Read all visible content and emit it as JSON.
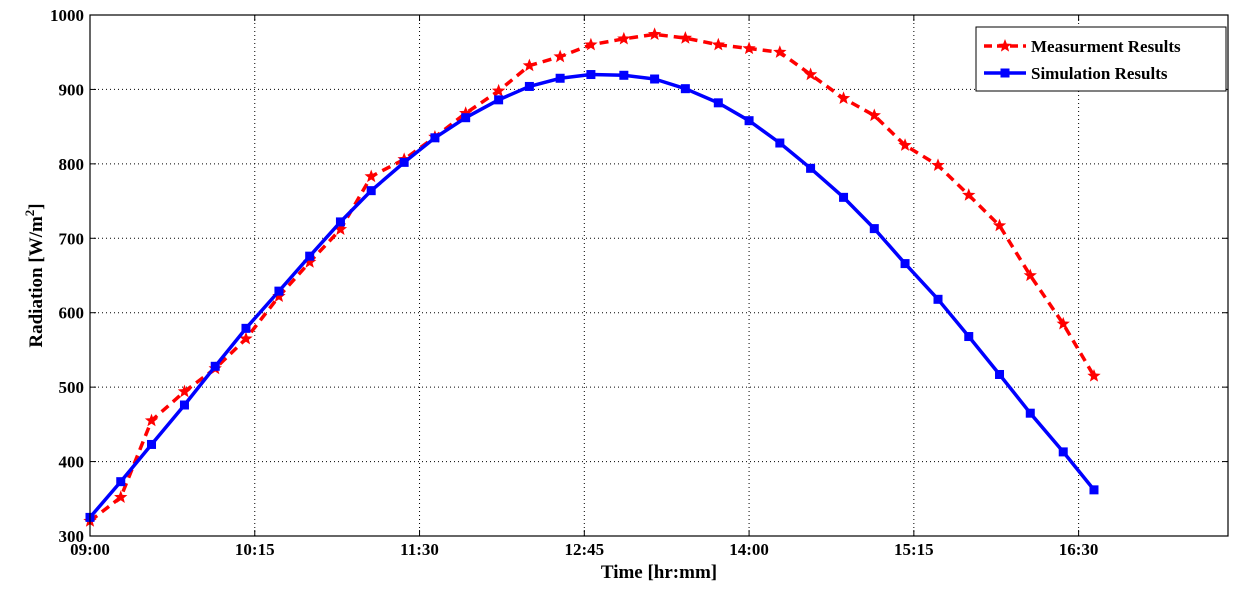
{
  "chart_data": {
    "type": "line",
    "title": "",
    "xlabel": "Time [hr:mm]",
    "ylabel": "Radiation [W/m²]",
    "ylabel_main": "Radiation [W/m",
    "ylabel_sup": "2",
    "ylabel_tail": "]",
    "xlim_minutes": [
      540,
      1058
    ],
    "ylim": [
      300,
      1000
    ],
    "grid": true,
    "legend_position": "top-right",
    "x_ticks": [
      {
        "value": 540,
        "label": "09:00"
      },
      {
        "value": 615,
        "label": "10:15"
      },
      {
        "value": 690,
        "label": "11:30"
      },
      {
        "value": 765,
        "label": "12:45"
      },
      {
        "value": 840,
        "label": "14:00"
      },
      {
        "value": 915,
        "label": "15:15"
      },
      {
        "value": 990,
        "label": "16:30"
      }
    ],
    "y_ticks": [
      300,
      400,
      500,
      600,
      700,
      800,
      900,
      1000
    ],
    "series": [
      {
        "name": "Measurment Results",
        "color": "#ff0000",
        "line_style": "dashed",
        "marker": "star",
        "x": [
          "09:00",
          "09:14",
          "09:28",
          "09:43",
          "09:57",
          "10:11",
          "10:26",
          "10:40",
          "10:54",
          "11:08",
          "11:23",
          "11:37",
          "11:51",
          "12:06",
          "12:20",
          "12:34",
          "12:48",
          "13:03",
          "13:17",
          "13:31",
          "13:46",
          "14:00",
          "14:14",
          "14:28",
          "14:43",
          "14:57",
          "15:11",
          "15:26",
          "15:40",
          "15:54",
          "16:08",
          "16:23",
          "16:37",
          "16:51",
          "17:05"
        ],
        "values": [
          320,
          352,
          455,
          494,
          525,
          565,
          622,
          668,
          712,
          783,
          806,
          836,
          868,
          898,
          932,
          944,
          960,
          968,
          974,
          969,
          960,
          955,
          950,
          920,
          888,
          865,
          825,
          798,
          758,
          717,
          650,
          585,
          515,
          null,
          null
        ]
      },
      {
        "name": "Simulation Results",
        "color": "#0000ff",
        "line_style": "solid",
        "marker": "square",
        "x": [
          "09:00",
          "09:14",
          "09:28",
          "09:43",
          "09:57",
          "10:11",
          "10:26",
          "10:40",
          "10:54",
          "11:08",
          "11:23",
          "11:37",
          "11:51",
          "12:06",
          "12:20",
          "12:34",
          "12:48",
          "13:03",
          "13:17",
          "13:31",
          "13:46",
          "14:00",
          "14:14",
          "14:28",
          "14:43",
          "14:57",
          "15:11",
          "15:26",
          "15:40",
          "15:54",
          "16:08",
          "16:23",
          "16:37",
          "16:51",
          "17:05"
        ],
        "values": [
          325,
          373,
          423,
          476,
          528,
          579,
          629,
          676,
          722,
          764,
          802,
          835,
          862,
          886,
          904,
          915,
          920,
          919,
          914,
          901,
          882,
          858,
          828,
          794,
          755,
          713,
          666,
          618,
          568,
          517,
          465,
          413,
          362,
          null,
          null
        ]
      }
    ]
  }
}
